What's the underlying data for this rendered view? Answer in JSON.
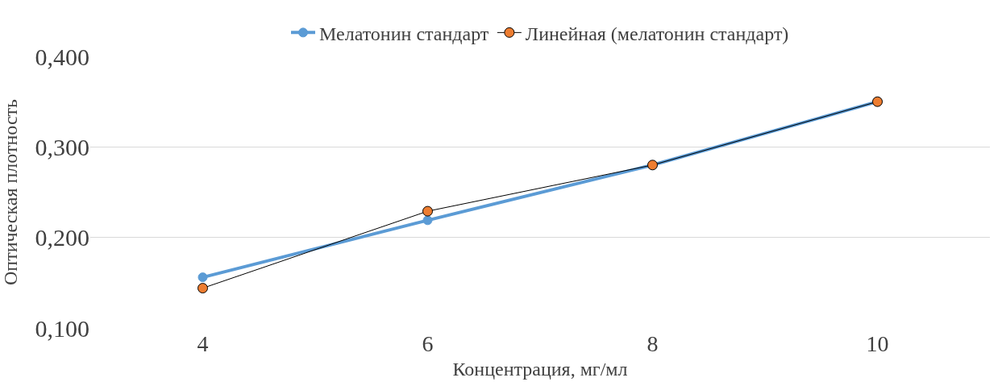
{
  "chart_data": {
    "type": "line",
    "xlabel": "Концентрация, мг/мл",
    "ylabel": "Оптическая плотность",
    "categories": [
      "4",
      "6",
      "8",
      "10"
    ],
    "series": [
      {
        "name": "Мелатонин стандарт",
        "color": "#5b9bd5",
        "values": [
          0.156,
          0.219,
          0.28,
          0.35
        ],
        "marker": "circle"
      },
      {
        "name": "Линейная (мелатонин стандарт)",
        "color": "#ed7d31",
        "values": [
          0.144,
          0.229,
          0.28,
          0.35
        ],
        "marker": "circle"
      }
    ],
    "ylim": [
      0.1,
      0.4
    ],
    "yticks": [
      {
        "value": 0.1,
        "label": "0,100"
      },
      {
        "value": 0.2,
        "label": "0,200"
      },
      {
        "value": 0.3,
        "label": "0,300"
      },
      {
        "value": 0.4,
        "label": "0,400"
      }
    ],
    "grid": "y",
    "legend": "top",
    "line_style": "solid"
  }
}
